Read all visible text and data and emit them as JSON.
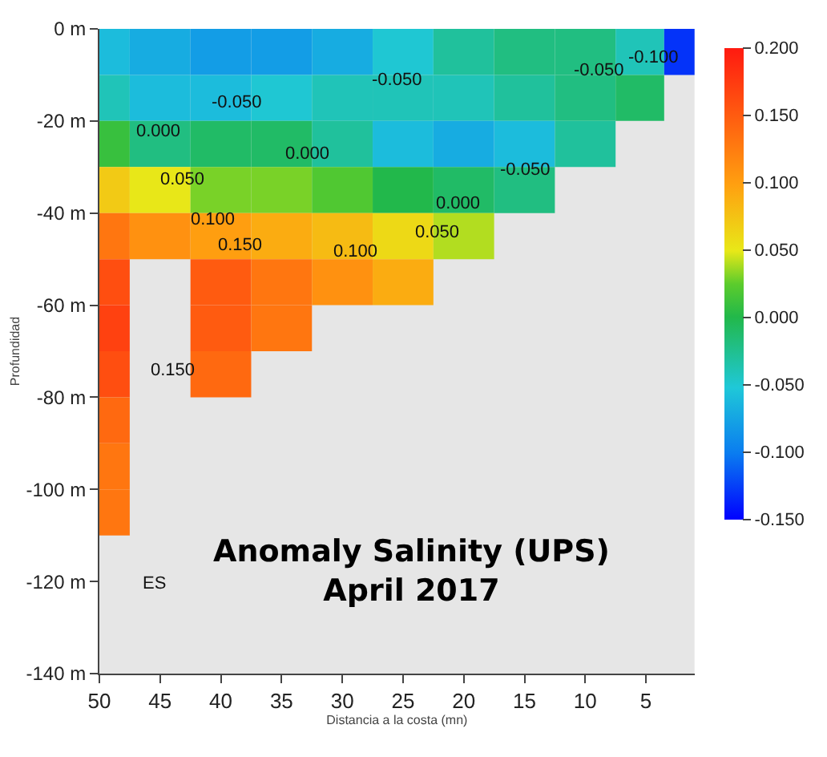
{
  "chart_data": {
    "type": "heatmap",
    "title": "Anomaly Salinity (UPS)\nApril 2017",
    "xlabel": "Distancia a la costa (mn)",
    "ylabel": "Profundidad",
    "x": [
      50,
      45,
      40,
      35,
      30,
      25,
      20,
      15,
      10,
      5,
      2
    ],
    "y": [
      -5,
      -15,
      -25,
      -35,
      -45,
      -55,
      -65,
      -75,
      -85,
      -95,
      -105
    ],
    "cells": [
      [
        -0.06,
        -0.07,
        -0.08,
        -0.08,
        -0.07,
        -0.05,
        -0.03,
        -0.02,
        -0.02,
        -0.04,
        -0.13
      ],
      [
        -0.04,
        -0.06,
        -0.06,
        -0.05,
        -0.04,
        -0.04,
        -0.04,
        -0.03,
        -0.02,
        -0.01,
        null
      ],
      [
        0.01,
        -0.02,
        -0.01,
        -0.01,
        -0.03,
        -0.06,
        -0.07,
        -0.06,
        -0.03,
        null,
        null
      ],
      [
        0.07,
        0.05,
        0.03,
        0.03,
        0.02,
        0.0,
        -0.01,
        -0.02,
        null,
        null,
        null
      ],
      [
        0.13,
        0.11,
        0.1,
        0.09,
        0.08,
        0.06,
        0.04,
        null,
        null,
        null,
        null
      ],
      [
        0.16,
        null,
        0.15,
        0.13,
        0.11,
        0.09,
        null,
        null,
        null,
        null,
        null
      ],
      [
        0.17,
        null,
        0.15,
        0.13,
        null,
        null,
        null,
        null,
        null,
        null,
        null
      ],
      [
        0.16,
        null,
        0.14,
        null,
        null,
        null,
        null,
        null,
        null,
        null,
        null
      ],
      [
        0.14,
        null,
        null,
        null,
        null,
        null,
        null,
        null,
        null,
        null,
        null
      ],
      [
        0.13,
        null,
        null,
        null,
        null,
        null,
        null,
        null,
        null,
        null,
        null
      ],
      [
        0.13,
        null,
        null,
        null,
        null,
        null,
        null,
        null,
        null,
        null,
        null
      ]
    ],
    "clim": [
      -0.15,
      0.2
    ],
    "cticks": [
      {
        "value": 0.2,
        "label": "0.200"
      },
      {
        "value": 0.15,
        "label": "0.150"
      },
      {
        "value": 0.1,
        "label": "0.100"
      },
      {
        "value": 0.05,
        "label": "0.050"
      },
      {
        "value": 0,
        "label": "0.000"
      },
      {
        "value": -0.05,
        "label": "-0.050"
      },
      {
        "value": -0.1,
        "label": "-0.100"
      },
      {
        "value": -0.15,
        "label": "-0.150"
      }
    ],
    "xlim": [
      50,
      1
    ],
    "xticks": [
      50,
      45,
      40,
      35,
      30,
      25,
      20,
      15,
      10,
      5
    ],
    "ylim": [
      -140,
      0
    ],
    "yticks": [
      {
        "value": 0,
        "label": "0 m"
      },
      {
        "value": -20,
        "label": "-20 m"
      },
      {
        "value": -40,
        "label": "-40 m"
      },
      {
        "value": -60,
        "label": "-60 m"
      },
      {
        "value": -80,
        "label": "-80 m"
      },
      {
        "value": -100,
        "label": "-100 m"
      },
      {
        "value": -120,
        "label": "-120 m"
      },
      {
        "value": -140,
        "label": "-140 m"
      }
    ],
    "annotations": [
      "-0.050",
      "-0.050",
      "-0.050",
      "-0.100",
      "0.000",
      "0.050",
      "0.000",
      "-0.050",
      "0.000",
      "0.100",
      "0.050",
      "0.150",
      "0.100",
      "0.150",
      "ES"
    ]
  }
}
